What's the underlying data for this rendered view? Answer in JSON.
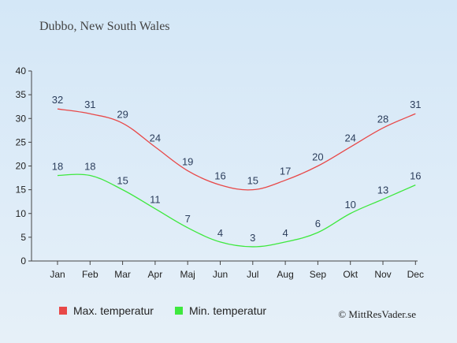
{
  "chart_data": {
    "type": "line",
    "title": "Dubbo, New South Wales",
    "categories": [
      "Jan",
      "Feb",
      "Mar",
      "Apr",
      "Maj",
      "Jun",
      "Jul",
      "Aug",
      "Sep",
      "Okt",
      "Nov",
      "Dec"
    ],
    "ylim": [
      0,
      40
    ],
    "yticks": [
      0,
      5,
      10,
      15,
      20,
      25,
      30,
      35,
      40
    ],
    "grid": false,
    "legend_position": "bottom-left",
    "series": [
      {
        "name": "Max. temperatur",
        "color": "#e84848",
        "values": [
          32,
          31,
          29,
          24,
          19,
          16,
          15,
          17,
          20,
          24,
          28,
          31
        ]
      },
      {
        "name": "Min. temperatur",
        "color": "#3ee83e",
        "values": [
          18,
          18,
          15,
          11,
          7,
          4,
          3,
          4,
          6,
          10,
          13,
          16
        ]
      }
    ]
  },
  "credit": "© MittResVader.se"
}
